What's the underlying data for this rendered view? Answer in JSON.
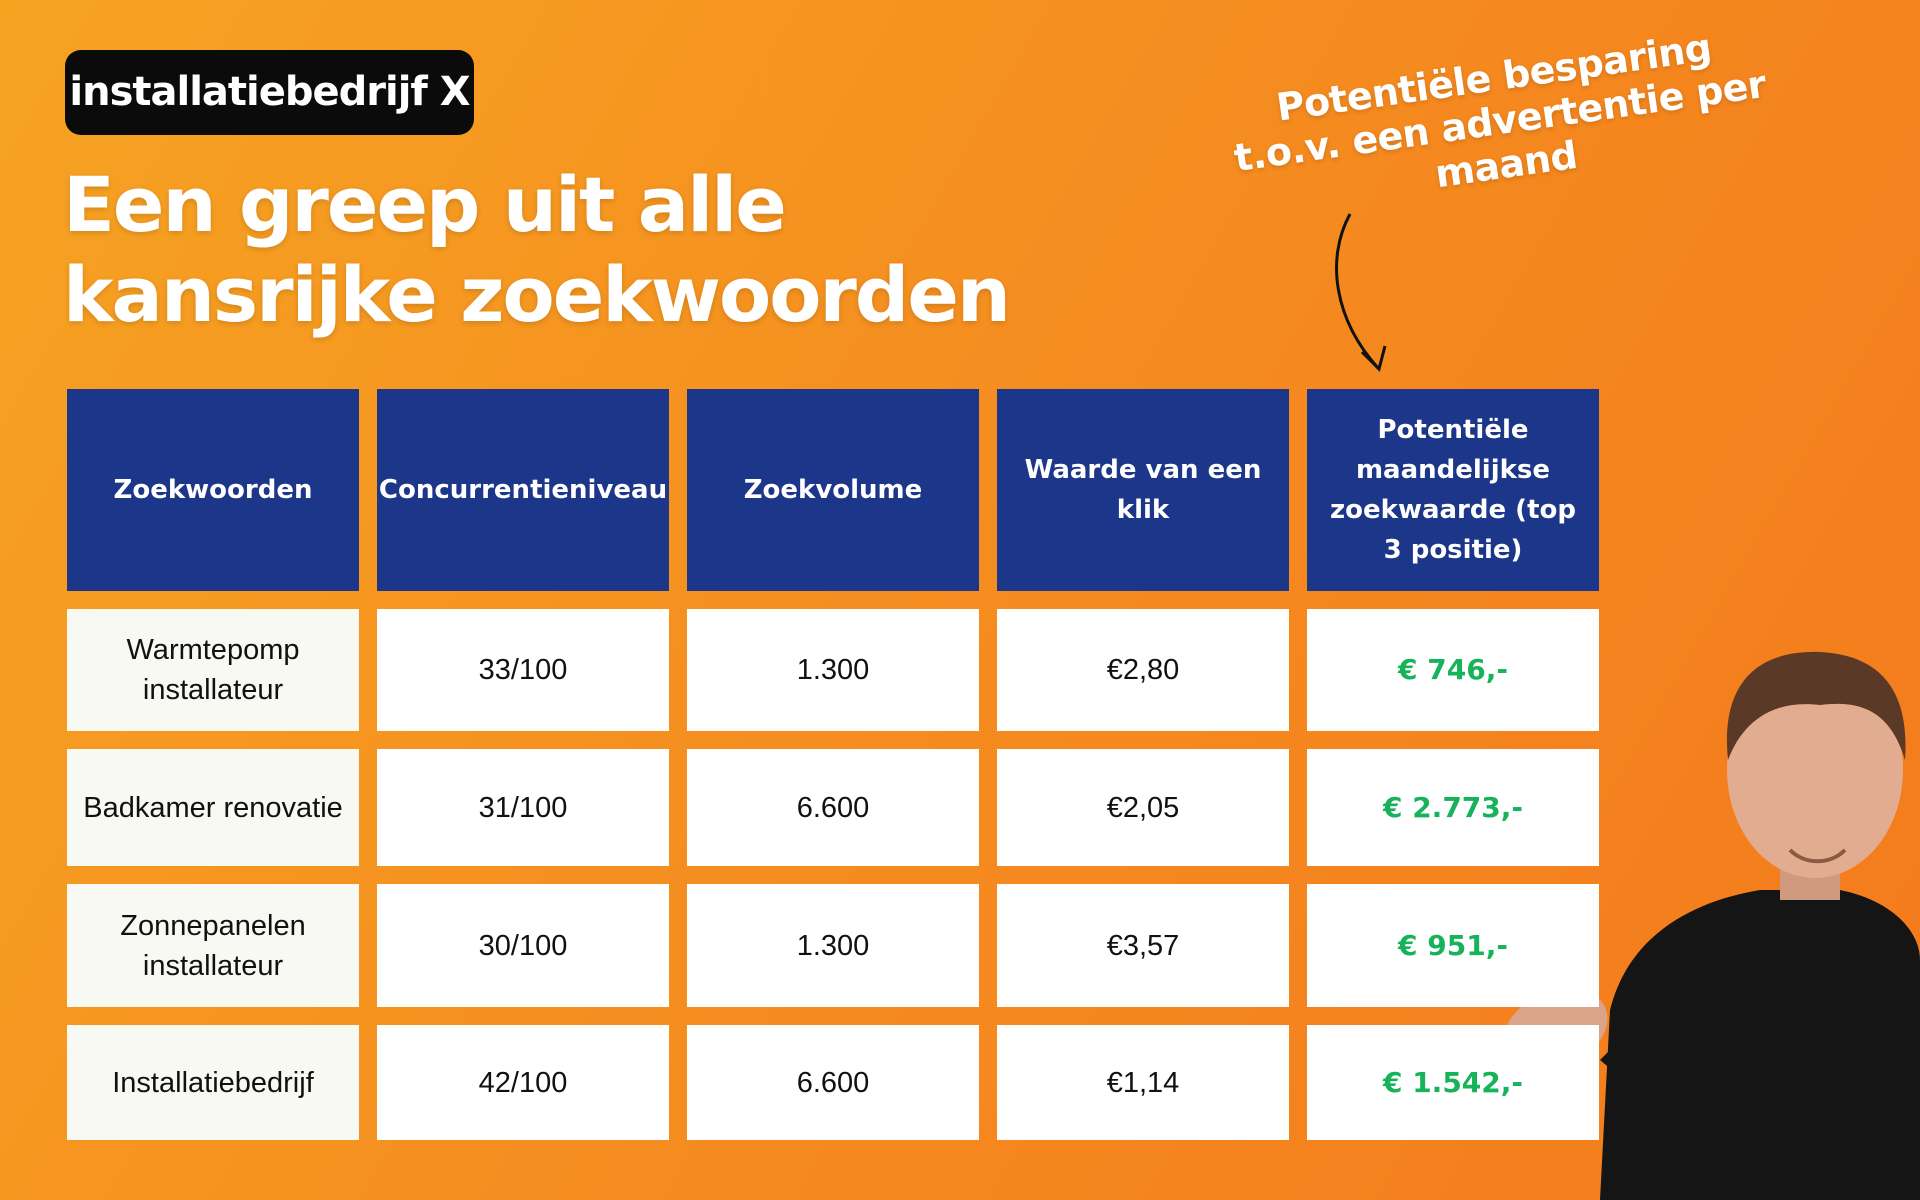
{
  "badge": "installatiebedrijf X",
  "title": [
    "Een greep uit alle",
    "kansrijke zoekwoorden"
  ],
  "annotation": [
    "Potentiële besparing",
    "t.o.v. een advertentie per",
    "maand"
  ],
  "table": {
    "headers": [
      "Zoekwoorden",
      "Concurrentieniveau",
      "Zoekvolume",
      "Waarde van een klik",
      "Potentiële maandelijkse zoekwaarde (top 3 positie)"
    ],
    "rows": [
      [
        "Warmtepomp installateur",
        "33/100",
        "1.300",
        "€2,80",
        "€ 746,-"
      ],
      [
        "Badkamer renovatie",
        "31/100",
        "6.600",
        "€2,05",
        "€ 2.773,-"
      ],
      [
        "Zonnepanelen installateur",
        "30/100",
        "1.300",
        "€3,57",
        "€ 951,-"
      ],
      [
        "Installatiebedrijf",
        "42/100",
        "6.600",
        "€1,14",
        "€ 1.542,-"
      ]
    ]
  }
}
